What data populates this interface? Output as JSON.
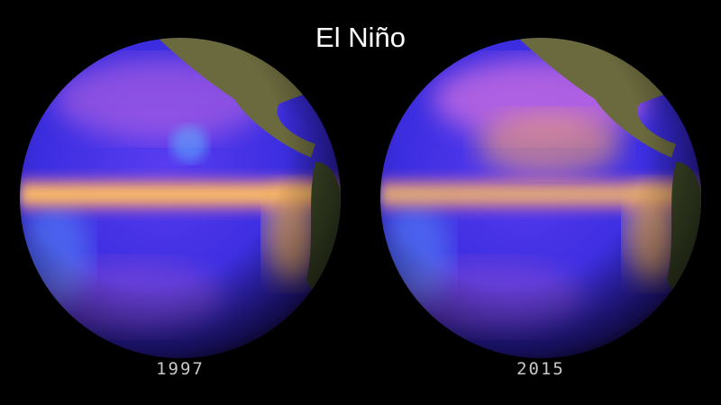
{
  "title": "El Niño",
  "globes": [
    {
      "label": "1997"
    },
    {
      "label": "2015"
    }
  ]
}
